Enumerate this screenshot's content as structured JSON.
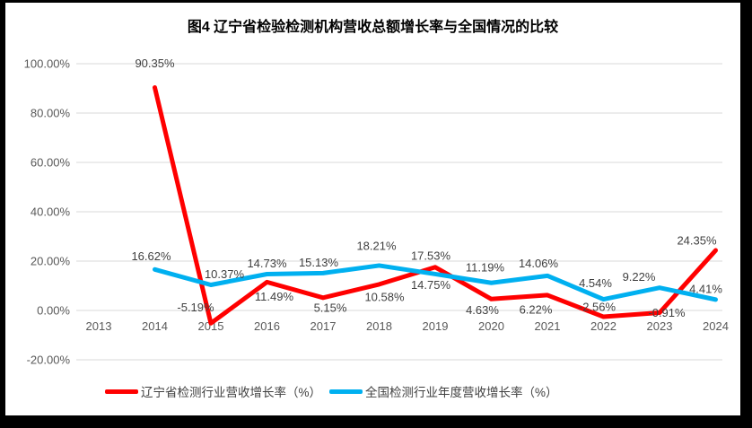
{
  "title": "图4 辽宁省检验检测机构营收总额增长率与全国情况的比较",
  "chart_data": {
    "type": "line",
    "title": "图4 辽宁省检验检测机构营收总额增长率与全国情况的比较",
    "x_categories": [
      "2013",
      "2014",
      "2015",
      "2016",
      "2017",
      "2018",
      "2019",
      "2020",
      "2021",
      "2022",
      "2023",
      "2024"
    ],
    "y_axis": {
      "tick_labels": [
        "100.00%",
        "80.00%",
        "60.00%",
        "40.00%",
        "20.00%",
        "0.00%",
        "-20.00%"
      ],
      "tick_values": [
        100,
        80,
        60,
        40,
        20,
        0,
        -20
      ],
      "range": [
        -20,
        100
      ],
      "grid": true
    },
    "legend_position": "bottom",
    "series": [
      {
        "id": "liaoning",
        "name": "辽宁省检测行业营收增长率（%）",
        "color": "#FF0000",
        "values": [
          null,
          90.35,
          -5.19,
          11.49,
          5.15,
          10.58,
          17.53,
          4.63,
          6.22,
          -2.56,
          -0.91,
          24.35
        ],
        "label_offsets": [
          [
            0,
            0
          ],
          [
            0,
            -27
          ],
          [
            -17,
            -18
          ],
          [
            8,
            16
          ],
          [
            8,
            11
          ],
          [
            6,
            14
          ],
          [
            -5,
            -13
          ],
          [
            -10,
            12
          ],
          [
            -13,
            16
          ],
          [
            -7,
            -11
          ],
          [
            8,
            0
          ],
          [
            -21,
            -11
          ]
        ]
      },
      {
        "id": "national",
        "name": "全国检测行业年度营收增长率（%）",
        "color": "#00B0F0",
        "values": [
          null,
          16.62,
          10.37,
          14.73,
          15.13,
          18.21,
          14.75,
          11.19,
          14.06,
          4.54,
          9.22,
          4.41
        ],
        "label_offsets": [
          [
            0,
            0
          ],
          [
            -4,
            -15
          ],
          [
            15,
            -12
          ],
          [
            0,
            -12
          ],
          [
            -5,
            -12
          ],
          [
            -3,
            -22
          ],
          [
            -5,
            12
          ],
          [
            -7,
            -17
          ],
          [
            -10,
            -14
          ],
          [
            -9,
            -18
          ],
          [
            -23,
            -12
          ],
          [
            -11,
            -12
          ]
        ]
      }
    ]
  },
  "legend": {
    "items": [
      {
        "label": "辽宁省检测行业营收增长率（%）",
        "color": "#FF0000"
      },
      {
        "label": "全国检测行业年度营收增长率（%）",
        "color": "#00B0F0"
      }
    ]
  },
  "colors": {
    "frame": "#000000",
    "background": "#ffffff",
    "gridline": "#D9D9D9",
    "axis_text": "#595959",
    "data_label_text": "#3f3f3f",
    "series_red": "#FF0000",
    "series_blue": "#00B0F0"
  }
}
